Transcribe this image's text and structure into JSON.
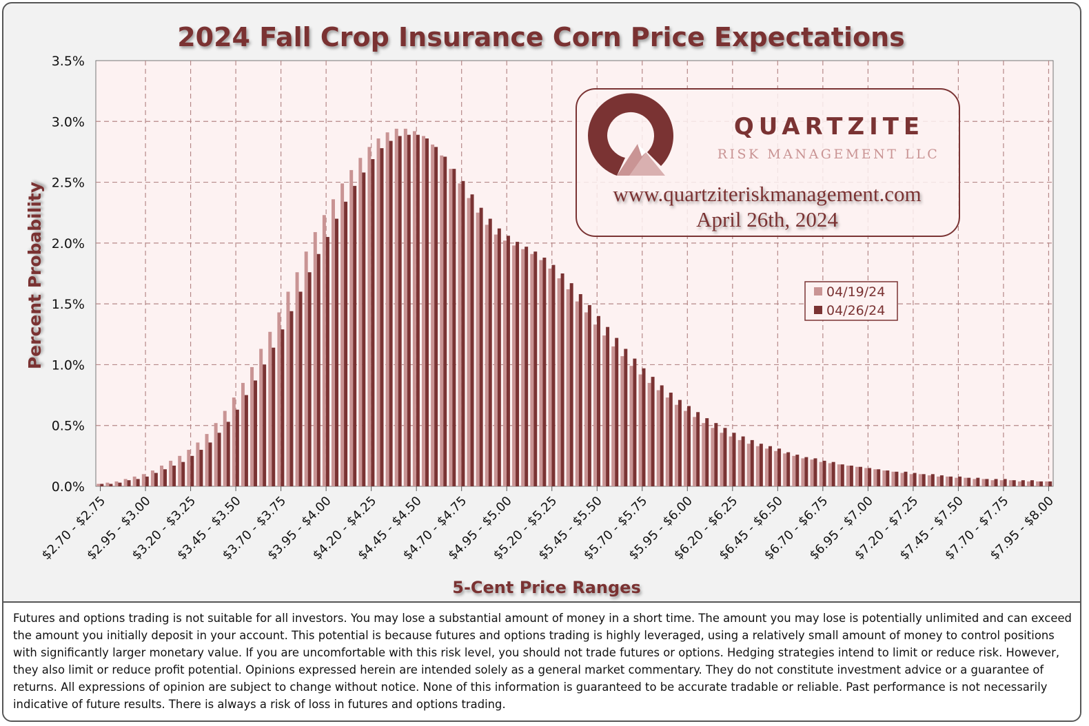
{
  "chart_data": {
    "type": "bar",
    "title": "2024 Fall Crop Insurance Corn Price Expectations",
    "xlabel": "5-Cent Price Ranges",
    "ylabel": "Percent Probability",
    "ylim": [
      0,
      3.5
    ],
    "yticks": [
      "0.0%",
      "0.5%",
      "1.0%",
      "1.5%",
      "2.0%",
      "2.5%",
      "3.0%",
      "3.5%"
    ],
    "x_tick_labels": [
      "$2.70 - $2.75",
      "$2.95 - $3.00",
      "$3.20 - $3.25",
      "$3.45 - $3.50",
      "$3.70 - $3.75",
      "$3.95 - $4.00",
      "$4.20 - $4.25",
      "$4.45 - $4.50",
      "$4.70 - $4.75",
      "$4.95 - $5.00",
      "$5.20 - $5.25",
      "$5.45 - $5.50",
      "$5.70 - $5.75",
      "$5.95 - $6.00",
      "$6.20 - $6.25",
      "$6.45 - $6.50",
      "$6.70 - $6.75",
      "$6.95 - $7.00",
      "$7.20 - $7.25",
      "$7.45 - $7.50",
      "$7.70 - $7.75",
      "$7.95 - $8.00"
    ],
    "categories": [
      "$2.70 - $2.75",
      "$2.75 - $2.80",
      "$2.80 - $2.85",
      "$2.85 - $2.90",
      "$2.90 - $2.95",
      "$2.95 - $3.00",
      "$3.00 - $3.05",
      "$3.05 - $3.10",
      "$3.10 - $3.15",
      "$3.15 - $3.20",
      "$3.20 - $3.25",
      "$3.25 - $3.30",
      "$3.30 - $3.35",
      "$3.35 - $3.40",
      "$3.40 - $3.45",
      "$3.45 - $3.50",
      "$3.50 - $3.55",
      "$3.55 - $3.60",
      "$3.60 - $3.65",
      "$3.65 - $3.70",
      "$3.70 - $3.75",
      "$3.75 - $3.80",
      "$3.80 - $3.85",
      "$3.85 - $3.90",
      "$3.90 - $3.95",
      "$3.95 - $4.00",
      "$4.00 - $4.05",
      "$4.05 - $4.10",
      "$4.10 - $4.15",
      "$4.15 - $4.20",
      "$4.20 - $4.25",
      "$4.25 - $4.30",
      "$4.30 - $4.35",
      "$4.35 - $4.40",
      "$4.40 - $4.45",
      "$4.45 - $4.50",
      "$4.50 - $4.55",
      "$4.55 - $4.60",
      "$4.60 - $4.65",
      "$4.65 - $4.70",
      "$4.70 - $4.75",
      "$4.75 - $4.80",
      "$4.80 - $4.85",
      "$4.85 - $4.90",
      "$4.90 - $4.95",
      "$4.95 - $5.00",
      "$5.00 - $5.05",
      "$5.05 - $5.10",
      "$5.10 - $5.15",
      "$5.15 - $5.20",
      "$5.20 - $5.25",
      "$5.25 - $5.30",
      "$5.30 - $5.35",
      "$5.35 - $5.40",
      "$5.40 - $5.45",
      "$5.45 - $5.50",
      "$5.50 - $5.55",
      "$5.55 - $5.60",
      "$5.60 - $5.65",
      "$5.65 - $5.70",
      "$5.70 - $5.75",
      "$5.75 - $5.80",
      "$5.80 - $5.85",
      "$5.85 - $5.90",
      "$5.90 - $5.95",
      "$5.95 - $6.00",
      "$6.00 - $6.05",
      "$6.05 - $6.10",
      "$6.10 - $6.15",
      "$6.15 - $6.20",
      "$6.20 - $6.25",
      "$6.25 - $6.30",
      "$6.30 - $6.35",
      "$6.35 - $6.40",
      "$6.40 - $6.45",
      "$6.45 - $6.50",
      "$6.50 - $6.55",
      "$6.55 - $6.60",
      "$6.60 - $6.65",
      "$6.65 - $6.70",
      "$6.70 - $6.75",
      "$6.75 - $6.80",
      "$6.80 - $6.85",
      "$6.85 - $6.90",
      "$6.90 - $6.95",
      "$6.95 - $7.00",
      "$7.00 - $7.05",
      "$7.05 - $7.10",
      "$7.10 - $7.15",
      "$7.15 - $7.20",
      "$7.20 - $7.25",
      "$7.25 - $7.30",
      "$7.30 - $7.35",
      "$7.35 - $7.40",
      "$7.40 - $7.45",
      "$7.45 - $7.50",
      "$7.50 - $7.55",
      "$7.55 - $7.60",
      "$7.60 - $7.65",
      "$7.65 - $7.70",
      "$7.70 - $7.75",
      "$7.75 - $7.80",
      "$7.80 - $7.85",
      "$7.85 - $7.90",
      "$7.90 - $7.95",
      "$7.95 - $8.00"
    ],
    "series": [
      {
        "name": "04/19/24",
        "color": "#c99494",
        "values": [
          0.02,
          0.03,
          0.04,
          0.06,
          0.08,
          0.1,
          0.13,
          0.17,
          0.21,
          0.25,
          0.3,
          0.36,
          0.43,
          0.52,
          0.62,
          0.73,
          0.85,
          0.98,
          1.13,
          1.27,
          1.43,
          1.6,
          1.76,
          1.93,
          2.09,
          2.23,
          2.36,
          2.49,
          2.6,
          2.7,
          2.79,
          2.86,
          2.91,
          2.94,
          2.94,
          2.92,
          2.88,
          2.81,
          2.72,
          2.61,
          2.49,
          2.37,
          2.25,
          2.15,
          2.07,
          2.02,
          1.98,
          1.95,
          1.91,
          1.86,
          1.79,
          1.71,
          1.62,
          1.52,
          1.43,
          1.33,
          1.24,
          1.15,
          1.07,
          0.99,
          0.92,
          0.85,
          0.79,
          0.73,
          0.67,
          0.62,
          0.57,
          0.52,
          0.48,
          0.44,
          0.41,
          0.38,
          0.35,
          0.33,
          0.31,
          0.29,
          0.27,
          0.25,
          0.23,
          0.22,
          0.2,
          0.19,
          0.18,
          0.17,
          0.16,
          0.15,
          0.14,
          0.13,
          0.12,
          0.11,
          0.1,
          0.1,
          0.09,
          0.08,
          0.08,
          0.07,
          0.07,
          0.06,
          0.06,
          0.05,
          0.05,
          0.05,
          0.04,
          0.04,
          0.04,
          0.04
        ]
      },
      {
        "name": "04/26/24",
        "color": "#7a3333",
        "values": [
          0.02,
          0.02,
          0.03,
          0.05,
          0.06,
          0.08,
          0.11,
          0.14,
          0.17,
          0.2,
          0.25,
          0.3,
          0.36,
          0.44,
          0.53,
          0.63,
          0.75,
          0.87,
          1.0,
          1.14,
          1.29,
          1.44,
          1.6,
          1.76,
          1.91,
          2.05,
          2.2,
          2.34,
          2.47,
          2.58,
          2.69,
          2.78,
          2.84,
          2.88,
          2.89,
          2.89,
          2.86,
          2.79,
          2.71,
          2.61,
          2.51,
          2.4,
          2.29,
          2.2,
          2.12,
          2.06,
          2.01,
          1.97,
          1.93,
          1.88,
          1.82,
          1.75,
          1.67,
          1.58,
          1.49,
          1.4,
          1.31,
          1.22,
          1.13,
          1.05,
          0.97,
          0.9,
          0.83,
          0.77,
          0.71,
          0.66,
          0.61,
          0.56,
          0.52,
          0.48,
          0.44,
          0.41,
          0.38,
          0.35,
          0.33,
          0.31,
          0.28,
          0.26,
          0.24,
          0.23,
          0.21,
          0.2,
          0.18,
          0.17,
          0.16,
          0.15,
          0.14,
          0.13,
          0.12,
          0.12,
          0.11,
          0.1,
          0.1,
          0.09,
          0.08,
          0.08,
          0.07,
          0.07,
          0.06,
          0.06,
          0.06,
          0.05,
          0.05,
          0.05,
          0.04,
          0.04
        ]
      }
    ],
    "grid": true,
    "legend": "right, mid-height"
  },
  "watermark": {
    "name": "QUARTZITE",
    "subtitle": "RISK MANAGEMENT LLC",
    "url": "www.quartziteriskmanagement.com",
    "date": "April 26th, 2024"
  },
  "disclaimer": "Futures and options trading is not suitable for all investors. You may lose a substantial amount of money in a short time. The amount you may lose is potentially unlimited and can exceed the amount you initially deposit in your account. This potential is because futures and options trading is highly leveraged, using a relatively small amount of money to control positions with significantly larger monetary value. If you are uncomfortable with this risk level, you should not trade futures or options. Hedging strategies intend to limit or reduce risk. However, they also limit or reduce profit potential. Opinions expressed herein are intended solely as a general market commentary. They do not constitute investment advice or a guarantee of returns. All expressions of opinion are subject to change without notice. None of this information is guaranteed to be accurate tradable or reliable. Past performance is not necessarily indicative of future results. There is always a risk of loss in futures and options trading.",
  "colors": {
    "title": "#7a3333",
    "plot_bg": "#fdf2f2",
    "grid": "#b58888",
    "series_1": "#c99494",
    "series_2": "#7a3333"
  }
}
